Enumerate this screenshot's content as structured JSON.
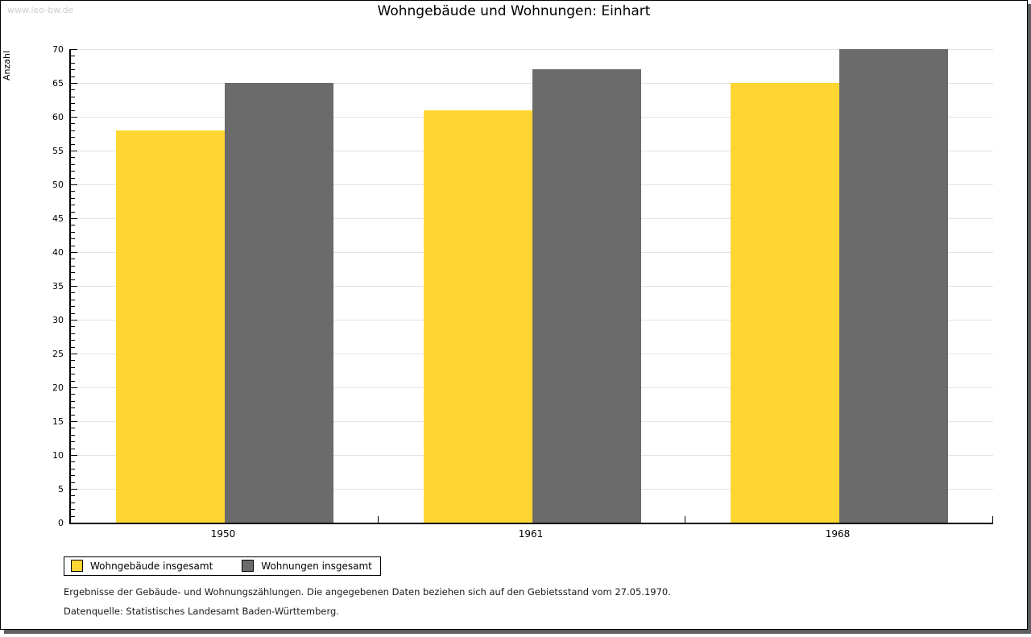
{
  "watermark": "www.leo-bw.de",
  "header": {
    "title": "Wohngebäude und Wohnungen: Einhart"
  },
  "chart_data": {
    "type": "bar",
    "title": "Wohngebäude und Wohnungen: Einhart",
    "categories": [
      "1950",
      "1961",
      "1968"
    ],
    "series": [
      {
        "name": "Wohngebäude insgesamt",
        "color": "#FDD633",
        "values": [
          58,
          61,
          65
        ]
      },
      {
        "name": "Wohnungen insgesamt",
        "color": "#6B6B6B",
        "values": [
          65,
          67,
          70
        ]
      }
    ],
    "xlabel": "",
    "ylabel": "Anzahl",
    "ylim": [
      0,
      70
    ],
    "y_major_step": 5,
    "y_minor_step": 1,
    "grid": true,
    "legend_position": "bottom-left"
  },
  "footnotes": {
    "line1": "Ergebnisse der Gebäude- und Wohnungszählungen. Die angegebenen Daten beziehen sich auf den Gebietsstand vom 27.05.1970.",
    "line2": "Datenquelle: Statistisches Landesamt Baden-Württemberg."
  },
  "colors": {
    "bar_yellow": "#FDD633",
    "bar_gray": "#6B6B6B",
    "gridline": "#E3E3E3",
    "watermark": "#CFCFCF",
    "frame_shadow": "#5E5E5E"
  }
}
